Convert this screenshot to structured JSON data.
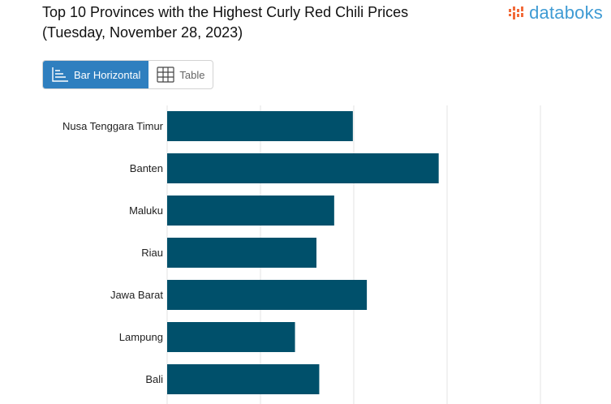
{
  "header": {
    "title_line1": "Top 10 Provinces with the Highest Curly Red Chili Prices",
    "title_line2": "(Tuesday, November 28, 2023)",
    "logo_text": "databoks",
    "logo_icon": "databoks-logo-icon"
  },
  "tabs": [
    {
      "label": "Bar Horizontal",
      "icon": "bar-horizontal-icon",
      "active": true
    },
    {
      "label": "Table",
      "icon": "table-icon",
      "active": false
    }
  ],
  "colors": {
    "bar": "#00506b",
    "gridline": "#e3e3e3",
    "tab_active": "#2f7fbf",
    "logo": "#3f9bd4",
    "logo_accent": "#f26b3a"
  },
  "chart_data": {
    "type": "bar",
    "orientation": "horizontal",
    "categories": [
      "Nusa Tenggara Timur",
      "Banten",
      "Maluku",
      "Riau",
      "Jawa Barat",
      "Lampung",
      "Bali"
    ],
    "values": [
      1.99,
      2.91,
      1.79,
      1.6,
      2.14,
      1.37,
      1.63
    ],
    "xlim": [
      0,
      4
    ],
    "grid": true,
    "title": "",
    "xlabel": "",
    "ylabel": ""
  }
}
